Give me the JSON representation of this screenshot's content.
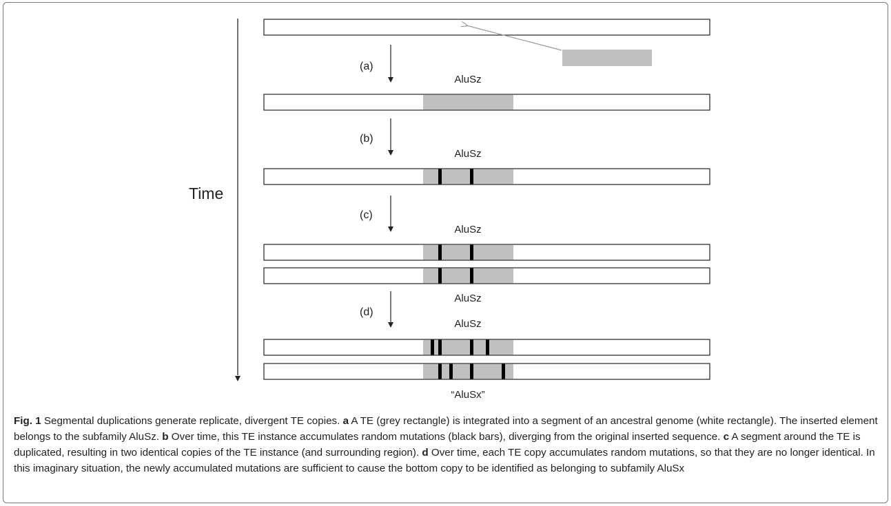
{
  "diagram": {
    "time_label": "Time",
    "step_labels": [
      "(a)",
      "(b)",
      "(c)",
      "(d)"
    ],
    "subfamily_a": "AluSz",
    "subfamily_b": "AluSz",
    "subfamily_c_top": "AluSz",
    "subfamily_c_bottom": "AluSz",
    "subfamily_d_top": "AluSz",
    "subfamily_d_bottom": "“AluSx”",
    "colors": {
      "te_grey": "#c0c0c0",
      "mutation_black": "#000000",
      "genome_white": "#ffffff",
      "arrow_grey": "#999999"
    }
  },
  "caption": {
    "fig_label": "Fig. 1",
    "title": " Segmental duplications generate replicate, divergent TE copies. ",
    "a_label": "a",
    "a_text": " A TE (grey rectangle) is integrated into a segment of an ancestral genome (white rectangle). The inserted element belongs to the subfamily AluSz. ",
    "b_label": "b",
    "b_text": " Over time, this TE instance accumulates random mutations (black bars), diverging from the original inserted sequence. ",
    "c_label": "c",
    "c_text": " A segment around the TE is duplicated, resulting in two identical copies of the TE instance (and surrounding region). ",
    "d_label": "d",
    "d_text": " Over time, each TE copy accumulates random mutations, so that they are no longer identical. In this imaginary situation, the newly accumulated mutations are sufficient to cause the bottom copy to be identified as belonging to subfamily AluSx"
  }
}
